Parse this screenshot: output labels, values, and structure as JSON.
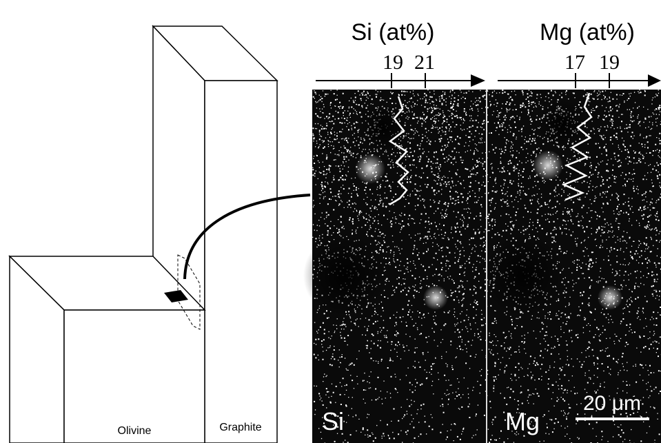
{
  "panels": [
    {
      "title": "Si (at%)",
      "ticks": [
        "19",
        "21"
      ],
      "label": "Si"
    },
    {
      "title": "Mg (at%)",
      "ticks": [
        "17",
        "19"
      ],
      "label": "Mg",
      "scale_bar": "20 μm"
    }
  ],
  "blocks": {
    "left": "Olivine",
    "right": "Graphite"
  }
}
